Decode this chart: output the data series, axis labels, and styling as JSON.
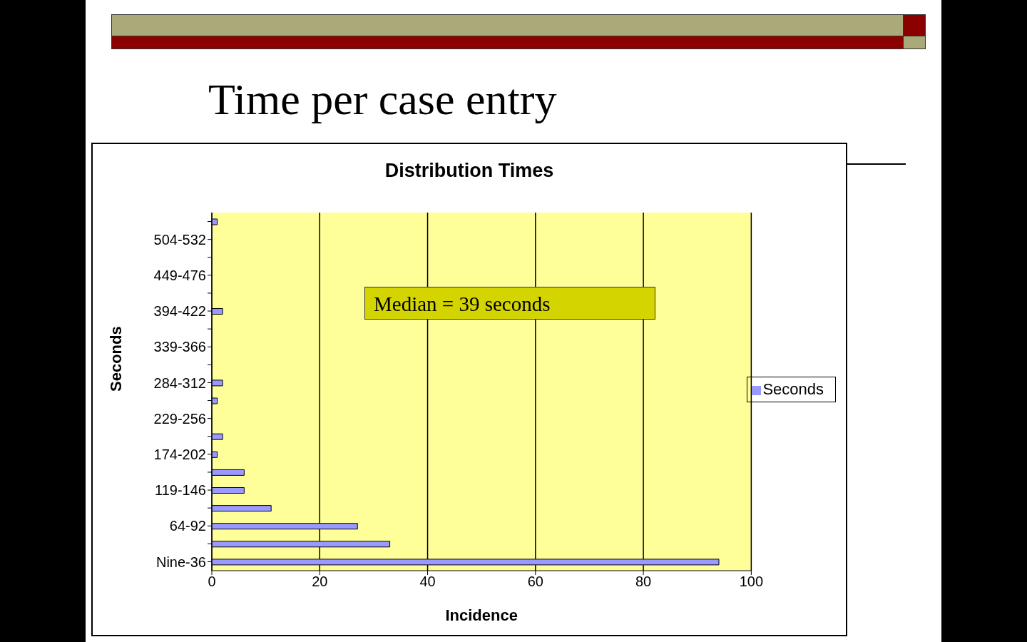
{
  "chart_data": {
    "type": "bar",
    "orientation": "horizontal",
    "title": "Time per case entry",
    "subtitle": "Distribution Times",
    "xlabel": "Incidence",
    "ylabel": "Seconds",
    "categories": [
      null,
      "504-532",
      null,
      "449-476",
      null,
      "394-422",
      null,
      "339-366",
      null,
      "284-312",
      null,
      "229-256",
      null,
      "174-202",
      null,
      "119-146",
      null,
      "64-92",
      null,
      "Nine-36"
    ],
    "series": [
      {
        "name": "Seconds",
        "color": "#9999ff",
        "values": [
          1,
          0,
          0,
          0,
          0,
          2,
          0,
          0,
          0,
          2,
          1,
          0,
          2,
          1,
          6,
          6,
          11,
          27,
          33,
          94
        ]
      }
    ],
    "xlim": [
      0,
      100
    ],
    "xticks": [
      0,
      20,
      40,
      60,
      80,
      100
    ],
    "grid": "x",
    "legend": "right",
    "annotations": [
      "Median = 39 seconds"
    ]
  }
}
